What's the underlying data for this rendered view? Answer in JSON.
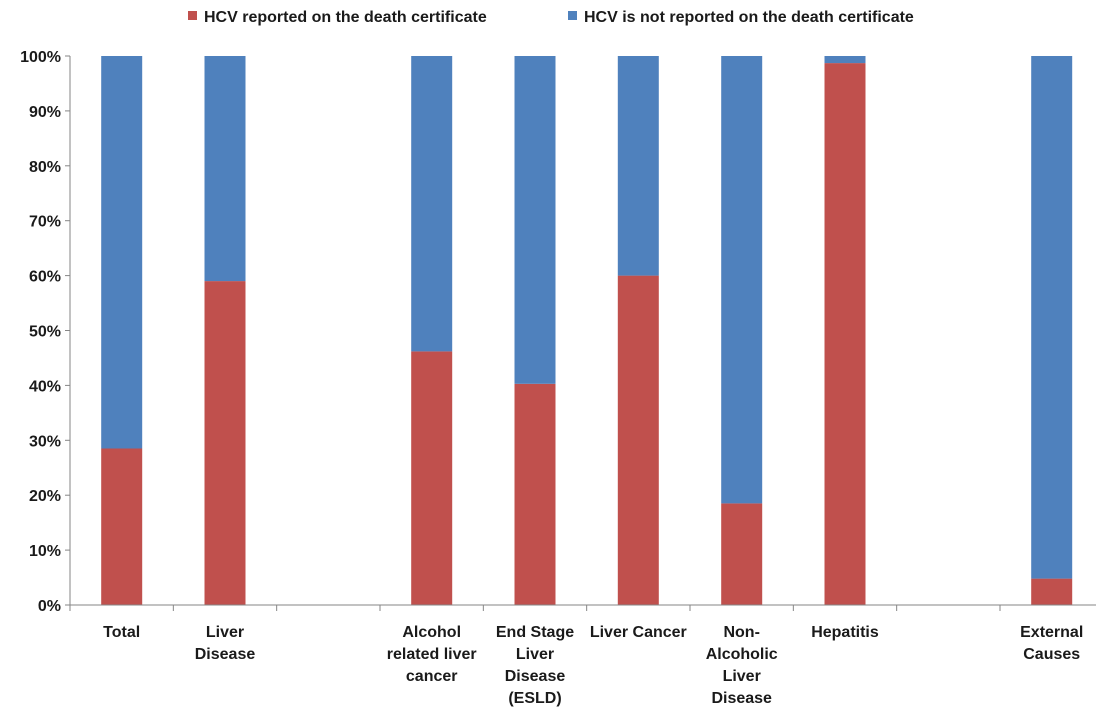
{
  "chart_data": {
    "type": "bar",
    "stacked": true,
    "percent_stacked": true,
    "legend_position": "top",
    "grid": false,
    "ylim": [
      0,
      100
    ],
    "y_ticks": [
      "0%",
      "10%",
      "20%",
      "30%",
      "40%",
      "50%",
      "60%",
      "70%",
      "80%",
      "90%",
      "100%"
    ],
    "categories": [
      [
        "Total"
      ],
      [
        "Liver",
        "Disease"
      ],
      [],
      [
        "Alcohol",
        "related liver",
        "cancer"
      ],
      [
        "End Stage",
        "Liver",
        "Disease",
        "(ESLD)"
      ],
      [
        "Liver Cancer"
      ],
      [
        "Non-",
        "Alcoholic",
        "Liver",
        "Disease"
      ],
      [
        "Hepatitis"
      ],
      [],
      [
        "External",
        "Causes"
      ]
    ],
    "series": [
      {
        "name": "HCV reported on the death certificate",
        "color": "#c0504d",
        "values": [
          28.5,
          59,
          null,
          46.2,
          40.3,
          60,
          18.5,
          98.7,
          null,
          4.8
        ]
      },
      {
        "name": "HCV is not reported on the death certificate",
        "color": "#4f81bd",
        "values": [
          71.5,
          41,
          null,
          53.8,
          59.7,
          40,
          81.5,
          1.3,
          null,
          95.2
        ]
      }
    ]
  }
}
